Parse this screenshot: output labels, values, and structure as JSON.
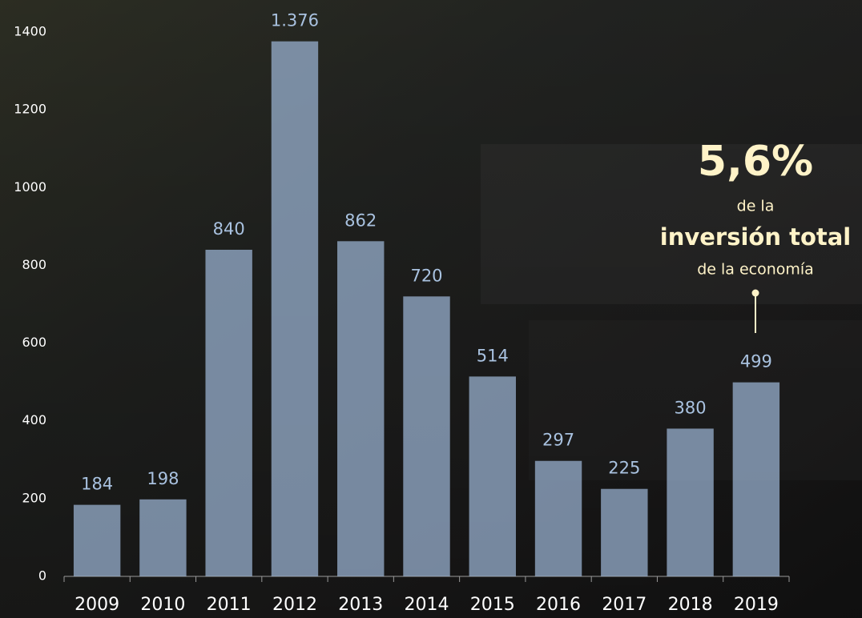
{
  "chart_data": {
    "type": "bar",
    "categories": [
      "2009",
      "2010",
      "2011",
      "2012",
      "2013",
      "2014",
      "2015",
      "2016",
      "2017",
      "2018",
      "2019"
    ],
    "values": [
      184,
      198,
      840,
      1376,
      862,
      720,
      514,
      297,
      225,
      380,
      499
    ],
    "value_labels": [
      "184",
      "198",
      "840",
      "1.376",
      "862",
      "720",
      "514",
      "297",
      "225",
      "380",
      "499"
    ],
    "color": "#9db6d6",
    "ylim": [
      0,
      1400
    ],
    "yticks": [
      0,
      200,
      400,
      600,
      800,
      1000,
      1200,
      1400
    ],
    "annotations": [
      "5,6%",
      "de la",
      "inversión total",
      "de la economía"
    ]
  }
}
